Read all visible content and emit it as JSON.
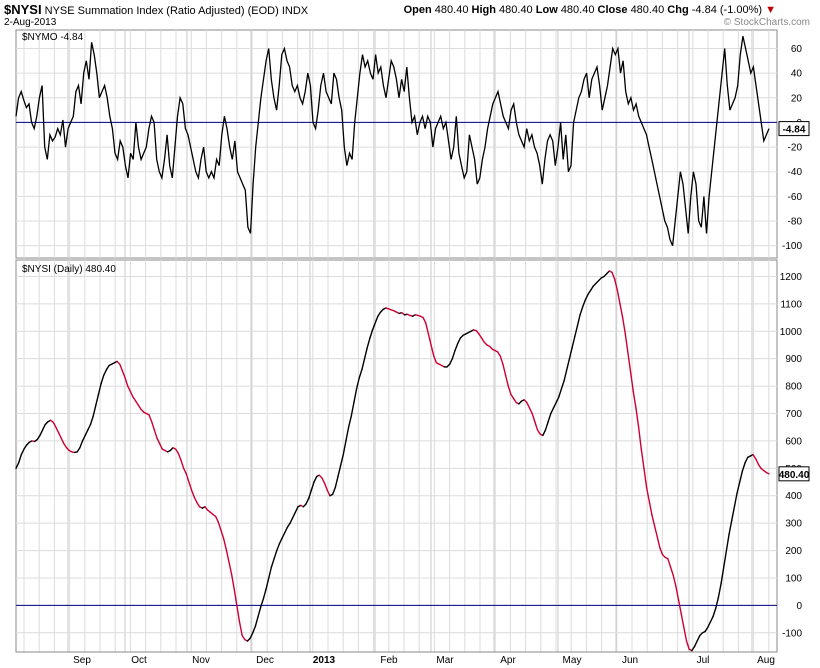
{
  "header": {
    "symbol": "$NYSI",
    "name": "NYSE Summation Index (Ratio Adjusted) (EOD)",
    "exchange": "INDX",
    "date": "2-Aug-2013",
    "open_label": "Open",
    "open": "480.40",
    "high_label": "High",
    "high": "480.40",
    "low_label": "Low",
    "low": "480.40",
    "close_label": "Close",
    "close": "480.40",
    "chg_label": "Chg",
    "chg": "-4.84 (-1.00%)",
    "chg_arrow": "▼",
    "credit": "© StockCharts.com"
  },
  "chart_data": [
    {
      "type": "line",
      "series_label": "$NYMO",
      "series_value": "-4.84",
      "last_value_box": "-4.84",
      "ylim": [
        -110,
        75
      ],
      "yticks": [
        60,
        40,
        20,
        0,
        -20,
        -40,
        -60,
        -80,
        -100
      ],
      "zero_line": 0,
      "line_color": "#000000",
      "values": [
        5,
        20,
        25,
        18,
        12,
        15,
        0,
        -5,
        5,
        20,
        30,
        -20,
        -30,
        -10,
        -15,
        -12,
        -5,
        -10,
        2,
        -20,
        -5,
        0,
        5,
        25,
        30,
        15,
        40,
        50,
        35,
        65,
        55,
        40,
        20,
        25,
        30,
        20,
        5,
        -5,
        -25,
        -30,
        -15,
        -20,
        -35,
        -45,
        -25,
        -30,
        0,
        -20,
        -30,
        -25,
        -20,
        -5,
        5,
        0,
        -30,
        -40,
        -45,
        -30,
        -10,
        -35,
        -45,
        -20,
        5,
        20,
        15,
        -5,
        -10,
        -20,
        -30,
        -40,
        -45,
        -30,
        -20,
        -40,
        -45,
        -40,
        -45,
        -30,
        -35,
        -10,
        5,
        -5,
        -20,
        -30,
        -15,
        -40,
        -45,
        -50,
        -55,
        -85,
        -90,
        -50,
        -20,
        0,
        20,
        35,
        50,
        60,
        35,
        20,
        10,
        30,
        55,
        60,
        50,
        45,
        30,
        25,
        30,
        20,
        15,
        25,
        40,
        30,
        0,
        -5,
        10,
        30,
        40,
        25,
        20,
        15,
        40,
        35,
        20,
        10,
        -20,
        -35,
        -25,
        -30,
        0,
        20,
        40,
        55,
        45,
        50,
        40,
        35,
        55,
        40,
        45,
        30,
        20,
        35,
        50,
        45,
        35,
        20,
        35,
        25,
        45,
        20,
        0,
        5,
        -10,
        0,
        5,
        -5,
        5,
        0,
        -20,
        -5,
        0,
        5,
        -5,
        0,
        -15,
        -30,
        -20,
        5,
        -25,
        -35,
        -45,
        -40,
        -10,
        -20,
        -30,
        -50,
        -45,
        -30,
        -20,
        -5,
        5,
        15,
        20,
        25,
        15,
        5,
        0,
        -5,
        10,
        15,
        0,
        -10,
        -15,
        -20,
        -5,
        -15,
        -10,
        -20,
        -25,
        -35,
        -50,
        -30,
        -15,
        -10,
        -15,
        -35,
        -20,
        0,
        -30,
        -10,
        -40,
        -35,
        0,
        10,
        20,
        25,
        35,
        40,
        20,
        35,
        40,
        45,
        30,
        10,
        20,
        30,
        45,
        60,
        55,
        60,
        40,
        50,
        25,
        15,
        20,
        10,
        15,
        5,
        0,
        -5,
        -10,
        -20,
        -30,
        -40,
        -50,
        -60,
        -70,
        -80,
        -85,
        -95,
        -100,
        -80,
        -60,
        -40,
        -50,
        -70,
        -90,
        -60,
        -40,
        -50,
        -80,
        -85,
        -60,
        -90,
        -60,
        -40,
        -20,
        0,
        20,
        40,
        60,
        30,
        10,
        15,
        20,
        30,
        55,
        70,
        60,
        50,
        40,
        45,
        30,
        15,
        0,
        -15,
        -10,
        -5
      ]
    },
    {
      "type": "line",
      "series_label": "$NYSI (Daily)",
      "series_value": "480.40",
      "last_value_box": "480.40",
      "ylim": [
        -170,
        1260
      ],
      "yticks": [
        1200,
        1100,
        1000,
        900,
        800,
        700,
        600,
        500,
        400,
        300,
        200,
        100,
        0,
        -100
      ],
      "zero_line": 0,
      "up_color": "#000000",
      "down_color": "#cc0033",
      "values": [
        500,
        520,
        550,
        570,
        585,
        595,
        600,
        598,
        605,
        620,
        640,
        660,
        670,
        675,
        668,
        650,
        630,
        610,
        590,
        575,
        565,
        560,
        558,
        560,
        575,
        600,
        620,
        640,
        660,
        690,
        730,
        770,
        810,
        840,
        860,
        875,
        880,
        885,
        890,
        880,
        855,
        830,
        800,
        780,
        760,
        745,
        730,
        715,
        705,
        700,
        695,
        670,
        640,
        610,
        590,
        570,
        565,
        560,
        565,
        575,
        570,
        555,
        530,
        500,
        480,
        450,
        420,
        395,
        375,
        360,
        355,
        360,
        348,
        340,
        332,
        325,
        305,
        275,
        245,
        205,
        160,
        115,
        60,
        0,
        -60,
        -110,
        -125,
        -130,
        -120,
        -100,
        -75,
        -40,
        -5,
        25,
        60,
        100,
        140,
        170,
        200,
        225,
        245,
        265,
        285,
        300,
        320,
        340,
        360,
        365,
        360,
        370,
        390,
        420,
        450,
        470,
        475,
        465,
        445,
        420,
        400,
        405,
        430,
        470,
        510,
        550,
        600,
        650,
        690,
        740,
        790,
        830,
        860,
        900,
        940,
        975,
        1005,
        1030,
        1055,
        1070,
        1080,
        1085,
        1082,
        1078,
        1075,
        1070,
        1065,
        1068,
        1060,
        1062,
        1058,
        1055,
        1060,
        1058,
        1055,
        1050,
        1030,
        990,
        950,
        910,
        885,
        880,
        875,
        870,
        870,
        880,
        900,
        930,
        955,
        975,
        985,
        990,
        995,
        1000,
        1005,
        1002,
        990,
        975,
        960,
        950,
        945,
        935,
        930,
        925,
        910,
        880,
        840,
        800,
        770,
        755,
        740,
        735,
        745,
        750,
        740,
        720,
        700,
        670,
        640,
        625,
        620,
        640,
        670,
        700,
        720,
        740,
        760,
        790,
        820,
        860,
        900,
        940,
        980,
        1020,
        1060,
        1090,
        1115,
        1135,
        1150,
        1165,
        1175,
        1185,
        1195,
        1200,
        1210,
        1220,
        1215,
        1190,
        1150,
        1100,
        1050,
        990,
        920,
        850,
        780,
        720,
        650,
        570,
        500,
        430,
        380,
        330,
        290,
        250,
        210,
        185,
        175,
        170,
        140,
        110,
        70,
        20,
        -30,
        -80,
        -130,
        -160,
        -165,
        -150,
        -130,
        -110,
        -100,
        -95,
        -80,
        -60,
        -40,
        -10,
        30,
        80,
        140,
        200,
        260,
        310,
        360,
        410,
        450,
        490,
        520,
        540,
        545,
        550,
        535,
        515,
        500,
        492,
        485,
        480
      ]
    }
  ],
  "x_axis": {
    "labels": [
      "Sep",
      "Oct",
      "Nov",
      "Dec",
      "2013",
      "Feb",
      "Mar",
      "Apr",
      "May",
      "Jun",
      "Jul",
      "Aug"
    ]
  }
}
